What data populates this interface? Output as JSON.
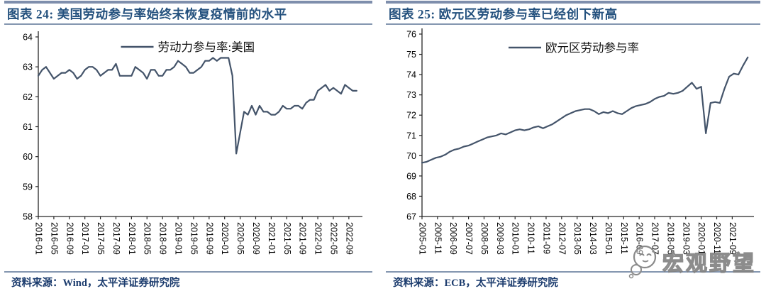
{
  "colors": {
    "title_blue": "#24517E",
    "rule_blue_gray": "#8496B0",
    "line": "#44546A",
    "source_navy": "#1C3C6E",
    "axis_black": "#262626",
    "watermark_gray": "#8a8a8a"
  },
  "panels": [
    {
      "title": "图表 24: 美国劳动参与率始终未恢复疫情前的水平",
      "source": "资料来源：Wind，太平洋证券研究院"
    },
    {
      "title": "图表 25: 欧元区劳动参与率已经创下新高",
      "source": "资料来源：ECB，太平洋证券研究院"
    }
  ],
  "watermark": {
    "text": "宏观野望",
    "icon": "speech-bubble-smiley-icon"
  },
  "chart_data": [
    {
      "type": "line",
      "series_name": "劳动力参与率:美国",
      "frequency": "monthly",
      "x_start": "2016-01",
      "x_end": "2022-11",
      "x_step": 1,
      "x_tick_step": 4,
      "x_tick_labels": [
        "2016-01",
        "2016-05",
        "2016-09",
        "2017-01",
        "2017-05",
        "2017-09",
        "2018-01",
        "2018-05",
        "2018-09",
        "2019-01",
        "2019-05",
        "2019-09",
        "2020-01",
        "2020-05",
        "2020-09",
        "2021-01",
        "2021-05",
        "2021-09",
        "2022-01",
        "2022-05",
        "2022-09"
      ],
      "ylim": [
        58,
        64
      ],
      "y_tick_labels": [
        "58",
        "59",
        "60",
        "61",
        "62",
        "63",
        "64"
      ],
      "grid": false,
      "legend_position": "top-center",
      "values": [
        62.7,
        62.9,
        63.0,
        62.8,
        62.6,
        62.7,
        62.8,
        62.8,
        62.9,
        62.8,
        62.6,
        62.7,
        62.9,
        63.0,
        63.0,
        62.9,
        62.7,
        62.8,
        62.9,
        62.9,
        63.1,
        62.7,
        62.7,
        62.7,
        62.7,
        63.0,
        62.9,
        62.8,
        62.6,
        62.9,
        62.9,
        62.7,
        62.7,
        62.9,
        62.9,
        63.0,
        63.2,
        63.1,
        63.0,
        62.8,
        62.8,
        62.9,
        63.0,
        63.2,
        63.2,
        63.3,
        63.2,
        63.3,
        63.3,
        63.3,
        62.7,
        60.1,
        60.8,
        61.5,
        61.4,
        61.7,
        61.4,
        61.7,
        61.5,
        61.5,
        61.4,
        61.4,
        61.5,
        61.7,
        61.6,
        61.6,
        61.7,
        61.7,
        61.6,
        61.8,
        61.9,
        61.9,
        62.2,
        62.3,
        62.4,
        62.2,
        62.3,
        62.2,
        62.1,
        62.4,
        62.3,
        62.2,
        62.2
      ]
    },
    {
      "type": "line",
      "series_name": "欧元区劳动参与率",
      "frequency": "quarterly",
      "x_start": "2005-01",
      "x_end": "2022-07",
      "x_step": 3,
      "x_tick_step": 10,
      "x_tick_labels": [
        "2005-01",
        "2005-11",
        "2006-09",
        "2007-07",
        "2008-05",
        "2009-03",
        "2010-01",
        "2010-11",
        "2011-09",
        "2012-07",
        "2013-05",
        "2014-03",
        "2015-01",
        "2015-11",
        "2016-09",
        "2017-07",
        "2018-05",
        "2019-03",
        "2020-01",
        "2020-11",
        "2021-09"
      ],
      "ylim": [
        67,
        76
      ],
      "y_tick_labels": [
        "67",
        "68",
        "69",
        "70",
        "71",
        "72",
        "73",
        "74",
        "75",
        "76"
      ],
      "grid": false,
      "legend_position": "top-center",
      "values": [
        69.65,
        69.7,
        69.8,
        69.9,
        69.95,
        70.05,
        70.2,
        70.3,
        70.35,
        70.45,
        70.5,
        70.6,
        70.7,
        70.8,
        70.9,
        70.95,
        71.0,
        71.1,
        71.05,
        71.15,
        71.25,
        71.3,
        71.25,
        71.3,
        71.4,
        71.45,
        71.35,
        71.45,
        71.55,
        71.7,
        71.85,
        72.0,
        72.1,
        72.2,
        72.25,
        72.3,
        72.3,
        72.2,
        72.05,
        72.15,
        72.1,
        72.2,
        72.1,
        72.05,
        72.2,
        72.35,
        72.45,
        72.5,
        72.55,
        72.65,
        72.8,
        72.9,
        72.95,
        73.1,
        73.05,
        73.1,
        73.2,
        73.4,
        73.6,
        73.3,
        73.4,
        71.1,
        72.6,
        72.65,
        72.6,
        73.3,
        73.9,
        74.05,
        74.0,
        74.45,
        74.85
      ]
    }
  ]
}
